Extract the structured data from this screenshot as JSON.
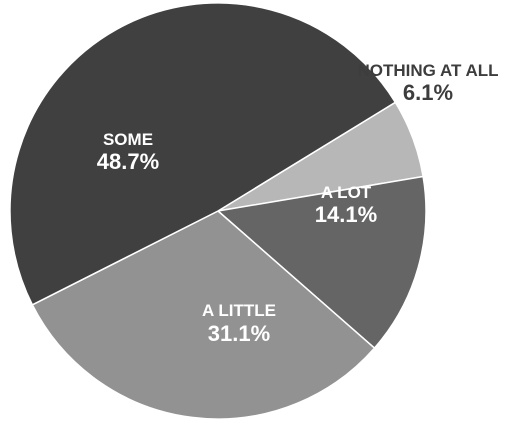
{
  "chart_data": {
    "type": "pie",
    "slices": [
      {
        "label": "NOTHING AT ALL",
        "value": 6.1,
        "display": "6.1%",
        "color": "#b7b7b7",
        "label_color": "#3d3d3d"
      },
      {
        "label": "A LOT",
        "value": 14.1,
        "display": "14.1%",
        "color": "#656565",
        "label_color": "#ffffff"
      },
      {
        "label": "A LITTLE",
        "value": 31.1,
        "display": "31.1%",
        "color": "#929292",
        "label_color": "#ffffff"
      },
      {
        "label": "SOME",
        "value": 48.7,
        "display": "48.7%",
        "color": "#404040",
        "label_color": "#ffffff"
      }
    ]
  }
}
